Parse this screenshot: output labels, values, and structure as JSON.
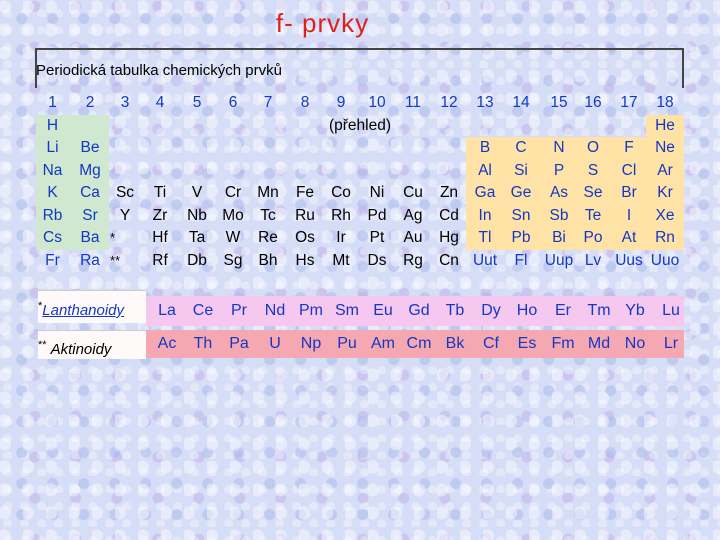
{
  "title": "f- prvky",
  "subtitle": "Periodická tabulka chemických prvků",
  "overview_label": "(přehled)",
  "groups": [
    "1",
    "2",
    "3",
    "4",
    "5",
    "6",
    "7",
    "8",
    "9",
    "10",
    "11",
    "12",
    "13",
    "14",
    "15",
    "16",
    "17",
    "18"
  ],
  "rows": [
    [
      "H",
      "",
      "",
      "",
      "",
      "",
      "",
      "",
      "",
      "",
      "",
      "",
      "",
      "",
      "",
      "",
      "",
      "He"
    ],
    [
      "Li",
      "Be",
      "",
      "",
      "",
      "",
      "",
      "",
      "",
      "",
      "",
      "",
      "B",
      "C",
      "N",
      "O",
      "F",
      "Ne"
    ],
    [
      "Na",
      "Mg",
      "",
      "",
      "",
      "",
      "",
      "",
      "",
      "",
      "",
      "",
      "Al",
      "Si",
      "P",
      "S",
      "Cl",
      "Ar"
    ],
    [
      "K",
      "Ca",
      "Sc",
      "Ti",
      "V",
      "Cr",
      "Mn",
      "Fe",
      "Co",
      "Ni",
      "Cu",
      "Zn",
      "Ga",
      "Ge",
      "As",
      "Se",
      "Br",
      "Kr"
    ],
    [
      "Rb",
      "Sr",
      "Y",
      "Zr",
      "Nb",
      "Mo",
      "Tc",
      "Ru",
      "Rh",
      "Pd",
      "Ag",
      "Cd",
      "In",
      "Sn",
      "Sb",
      "Te",
      "I",
      "Xe"
    ],
    [
      "Cs",
      "Ba",
      "*",
      "Hf",
      "Ta",
      "W",
      "Re",
      "Os",
      "Ir",
      "Pt",
      "Au",
      "Hg",
      "Tl",
      "Pb",
      "Bi",
      "Po",
      "At",
      "Rn"
    ],
    [
      "Fr",
      "Ra",
      "**",
      "Rf",
      "Db",
      "Sg",
      "Bh",
      "Hs",
      "Mt",
      "Ds",
      "Rg",
      "Cn",
      "Uut",
      "Fl",
      "Uup",
      "Lv",
      "Uus",
      "Uuo"
    ]
  ],
  "lanthanoids": {
    "marker": "*",
    "label": "Lanthanoidy",
    "elements": [
      "La",
      "Ce",
      "Pr",
      "Nd",
      "Pm",
      "Sm",
      "Eu",
      "Gd",
      "Tb",
      "Dy",
      "Ho",
      "Er",
      "Tm",
      "Yb",
      "Lu"
    ]
  },
  "actinoids": {
    "marker": "**",
    "label": "Aktinoidy",
    "elements": [
      "Ac",
      "Th",
      "Pa",
      "U",
      "Np",
      "Pu",
      "Am",
      "Cm",
      "Bk",
      "Cf",
      "Es",
      "Fm",
      "Md",
      "No",
      "Lr"
    ]
  },
  "colors": {
    "title": "#e02020",
    "s_block": "#cfe8cf",
    "p_block": "#ffe3a6",
    "lanthanoid_band": "#f6c8f0",
    "actinoid_band": "#f5a8b2",
    "link_blue": "#1338c4"
  }
}
